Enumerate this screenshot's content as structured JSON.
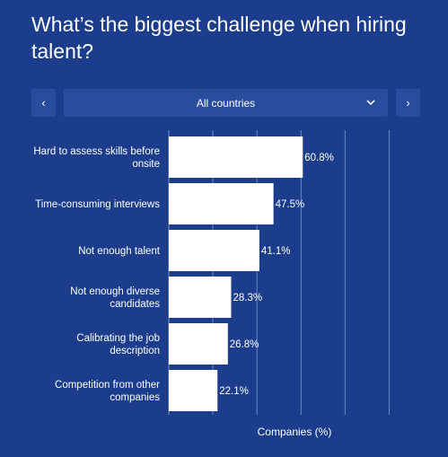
{
  "title": "What’s the biggest challenge when hiring talent?",
  "filter": {
    "prev_label": "‹",
    "next_label": "›",
    "selected": "All countries"
  },
  "chart_data": {
    "type": "bar",
    "orientation": "horizontal",
    "categories": [
      [
        "Hard to assess skills before",
        "onsite"
      ],
      [
        "Time-consuming interviews"
      ],
      [
        "Not enough talent"
      ],
      [
        "Not enough diverse",
        "candidates"
      ],
      [
        "Calibrating the job",
        "description"
      ],
      [
        "Competition from other",
        "companies"
      ]
    ],
    "values": [
      60.8,
      47.5,
      41.1,
      28.3,
      26.8,
      22.1
    ],
    "value_suffix": "%",
    "xlabel": "Companies (%)",
    "xlim": [
      0,
      100
    ],
    "grid": true,
    "colors": {
      "bar": "#ffffff",
      "grid": "#6f86c4",
      "background": "#1c3d8c"
    }
  }
}
